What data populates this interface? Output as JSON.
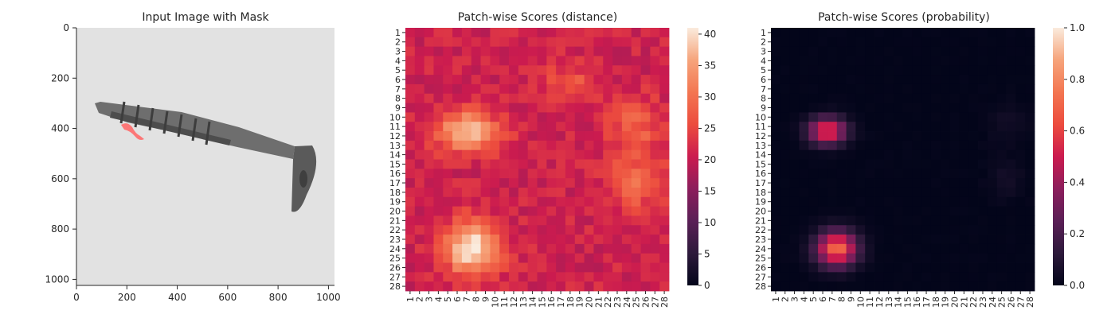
{
  "chart_data": [
    {
      "type": "image",
      "title": "Input Image with Mask",
      "xlim": [
        0,
        1024
      ],
      "ylim": [
        1024,
        0
      ],
      "xticks": [
        "0",
        "200",
        "400",
        "600",
        "800",
        "1000"
      ],
      "yticks": [
        "0",
        "200",
        "400",
        "600",
        "800",
        "1000"
      ],
      "grid": false,
      "colors": {
        "background": "#e2e2e2",
        "object": "#6b6b6b",
        "mask": "#ff6b6b"
      }
    },
    {
      "type": "heatmap",
      "title": "Patch-wise Scores (distance)",
      "rows": [
        "1",
        "2",
        "3",
        "4",
        "5",
        "6",
        "7",
        "8",
        "9",
        "10",
        "11",
        "12",
        "13",
        "14",
        "15",
        "16",
        "17",
        "18",
        "19",
        "20",
        "21",
        "22",
        "23",
        "24",
        "25",
        "26",
        "27",
        "28"
      ],
      "cols": [
        "1",
        "2",
        "3",
        "4",
        "5",
        "6",
        "7",
        "8",
        "9",
        "10",
        "11",
        "12",
        "13",
        "14",
        "15",
        "16",
        "17",
        "18",
        "19",
        "20",
        "21",
        "22",
        "23",
        "24",
        "25",
        "26",
        "27",
        "28"
      ],
      "colorbar": {
        "min": 0,
        "max": 41,
        "ticks": [
          "0",
          "5",
          "10",
          "15",
          "20",
          "25",
          "30",
          "35",
          "40"
        ]
      },
      "colormap": "rocket",
      "blobs": [
        {
          "row": 11.5,
          "col": 7,
          "sigma_row": 1.5,
          "sigma_col": 2.3,
          "amp": 17
        },
        {
          "row": 24,
          "col": 7.5,
          "sigma_row": 2.0,
          "sigma_col": 2.0,
          "amp": 20
        },
        {
          "row": 11,
          "col": 25,
          "sigma_row": 2.0,
          "sigma_col": 2.0,
          "amp": 7
        },
        {
          "row": 17,
          "col": 25,
          "sigma_row": 2.0,
          "sigma_col": 2.0,
          "amp": 8
        },
        {
          "row": 6.5,
          "col": 18,
          "sigma_row": 1.5,
          "sigma_col": 2.0,
          "amp": 6
        }
      ],
      "base_value": 21,
      "grid": false
    },
    {
      "type": "heatmap",
      "title": "Patch-wise Scores (probability)",
      "rows": [
        "1",
        "2",
        "3",
        "4",
        "5",
        "6",
        "7",
        "8",
        "9",
        "10",
        "11",
        "12",
        "13",
        "14",
        "15",
        "16",
        "17",
        "18",
        "19",
        "20",
        "21",
        "22",
        "23",
        "24",
        "25",
        "26",
        "27",
        "28"
      ],
      "cols": [
        "1",
        "2",
        "3",
        "4",
        "5",
        "6",
        "7",
        "8",
        "9",
        "10",
        "11",
        "12",
        "13",
        "14",
        "15",
        "16",
        "17",
        "18",
        "19",
        "20",
        "21",
        "22",
        "23",
        "24",
        "25",
        "26",
        "27",
        "28"
      ],
      "colorbar": {
        "min": 0.0,
        "max": 1.0,
        "ticks": [
          "0.0",
          "0.2",
          "0.4",
          "0.6",
          "0.8",
          "1.0"
        ]
      },
      "colormap": "rocket",
      "blobs": [
        {
          "row": 11.5,
          "col": 6.5,
          "sigma_row": 1.0,
          "sigma_col": 1.4,
          "amp": 0.6
        },
        {
          "row": 24,
          "col": 7.5,
          "sigma_row": 1.3,
          "sigma_col": 1.5,
          "amp": 0.72
        },
        {
          "row": 16.5,
          "col": 25.5,
          "sigma_row": 1.5,
          "sigma_col": 1.3,
          "amp": 0.05
        },
        {
          "row": 10.5,
          "col": 25.5,
          "sigma_row": 1.5,
          "sigma_col": 1.5,
          "amp": 0.04
        }
      ],
      "base_value": 0.0,
      "grid": false
    }
  ]
}
